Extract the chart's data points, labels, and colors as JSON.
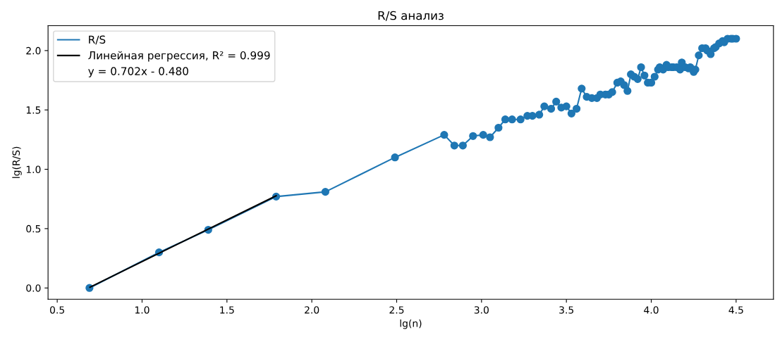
{
  "chart_data": {
    "type": "line",
    "title": "R/S анализ",
    "xlabel": "lg(n)",
    "ylabel": "lg(R/S)",
    "xlim": [
      0.446,
      4.72
    ],
    "ylim": [
      -0.095,
      2.21
    ],
    "xticks": [
      {
        "value": 0.5,
        "label": "0.5"
      },
      {
        "value": 1.0,
        "label": "1.0"
      },
      {
        "value": 1.5,
        "label": "1.5"
      },
      {
        "value": 2.0,
        "label": "2.0"
      },
      {
        "value": 2.5,
        "label": "2.5"
      },
      {
        "value": 3.0,
        "label": "3.0"
      },
      {
        "value": 3.5,
        "label": "3.5"
      },
      {
        "value": 4.0,
        "label": "4.0"
      },
      {
        "value": 4.5,
        "label": "4.5"
      }
    ],
    "yticks": [
      {
        "value": 0.0,
        "label": "0.0"
      },
      {
        "value": 0.5,
        "label": "0.5"
      },
      {
        "value": 1.0,
        "label": "1.0"
      },
      {
        "value": 1.5,
        "label": "1.5"
      },
      {
        "value": 2.0,
        "label": "2.0"
      }
    ],
    "legend": "top left",
    "grid": false,
    "annotations": [
      "y = 0.702x - 0.480"
    ],
    "series": [
      {
        "name": "R/S",
        "color": "#1f77b4",
        "marker": "circle",
        "x": [
          0.69,
          1.1,
          1.39,
          1.79,
          2.08,
          2.49,
          2.78,
          2.84,
          2.89,
          2.95,
          3.01,
          3.05,
          3.1,
          3.14,
          3.18,
          3.23,
          3.27,
          3.3,
          3.34,
          3.37,
          3.41,
          3.44,
          3.47,
          3.5,
          3.53,
          3.56,
          3.59,
          3.62,
          3.65,
          3.68,
          3.7,
          3.73,
          3.75,
          3.77,
          3.8,
          3.82,
          3.84,
          3.86,
          3.88,
          3.9,
          3.92,
          3.94,
          3.96,
          3.98,
          4.0,
          4.02,
          4.04,
          4.05,
          4.07,
          4.09,
          4.1,
          4.12,
          4.13,
          4.15,
          4.17,
          4.18,
          4.2,
          4.22,
          4.23,
          4.25,
          4.26,
          4.28,
          4.3,
          4.32,
          4.33,
          4.35,
          4.37,
          4.38,
          4.4,
          4.42,
          4.43,
          4.45,
          4.47,
          4.48,
          4.5
        ],
        "values": [
          0.0,
          0.3,
          0.49,
          0.77,
          0.81,
          1.1,
          1.29,
          1.2,
          1.2,
          1.28,
          1.29,
          1.27,
          1.35,
          1.42,
          1.42,
          1.42,
          1.45,
          1.45,
          1.46,
          1.53,
          1.51,
          1.57,
          1.52,
          1.53,
          1.47,
          1.51,
          1.68,
          1.61,
          1.6,
          1.6,
          1.63,
          1.63,
          1.63,
          1.65,
          1.73,
          1.74,
          1.71,
          1.66,
          1.8,
          1.78,
          1.76,
          1.86,
          1.79,
          1.73,
          1.73,
          1.78,
          1.84,
          1.86,
          1.84,
          1.88,
          1.86,
          1.86,
          1.86,
          1.86,
          1.84,
          1.9,
          1.86,
          1.85,
          1.86,
          1.82,
          1.84,
          1.96,
          2.02,
          2.02,
          2.0,
          1.97,
          2.02,
          2.03,
          2.06,
          2.08,
          2.07,
          2.1,
          2.1,
          2.1,
          2.1
        ]
      },
      {
        "name": "Линейная регрессия, R² = 0.999",
        "color": "#000000",
        "marker": "none",
        "x": [
          0.693,
          1.79
        ],
        "values": [
          0.0065,
          0.777
        ]
      }
    ]
  }
}
